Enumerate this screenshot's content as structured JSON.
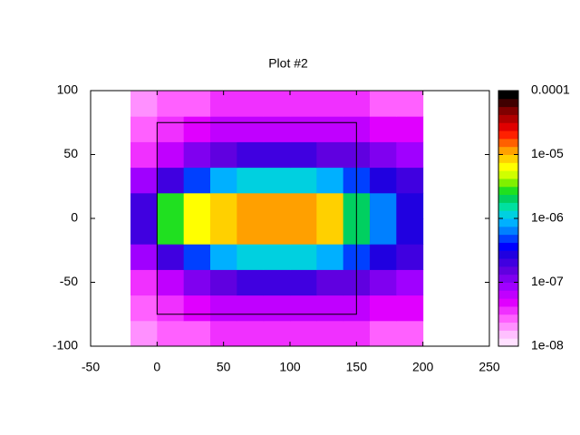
{
  "chart_data": {
    "type": "heatmap",
    "title": "Plot #2",
    "xbins": [
      -20,
      0,
      20,
      40,
      60,
      80,
      100,
      120,
      140,
      160,
      180,
      200
    ],
    "ybins": [
      -100,
      -80,
      -60,
      -40,
      -20,
      0,
      20,
      40,
      60,
      80,
      100
    ],
    "values": [
      [
        2e-08,
        3e-08,
        3e-08,
        4e-08,
        4e-08,
        4e-08,
        4e-08,
        4e-08,
        4e-08,
        3e-08,
        3e-08
      ],
      [
        3e-08,
        4e-08,
        5e-08,
        6e-08,
        7e-08,
        7e-08,
        7e-08,
        6e-08,
        6e-08,
        5e-08,
        5e-08
      ],
      [
        4e-08,
        6e-08,
        1e-07,
        1.5e-07,
        2e-07,
        2e-07,
        2e-07,
        1.5e-07,
        1.5e-07,
        1e-07,
        8e-08
      ],
      [
        8e-08,
        2e-07,
        5e-07,
        8e-07,
        1e-06,
        1e-06,
        1e-06,
        8e-07,
        5e-07,
        3e-07,
        2e-07
      ],
      [
        2e-07,
        3e-06,
        6e-06,
        8e-06,
        1e-05,
        1e-05,
        1e-05,
        8e-06,
        2e-06,
        6e-07,
        3e-07
      ],
      [
        2e-07,
        3e-06,
        6e-06,
        8e-06,
        1e-05,
        1e-05,
        1e-05,
        8e-06,
        2e-06,
        6e-07,
        3e-07
      ],
      [
        8e-08,
        2e-07,
        5e-07,
        8e-07,
        1e-06,
        1e-06,
        1e-06,
        8e-07,
        5e-07,
        3e-07,
        2e-07
      ],
      [
        4e-08,
        6e-08,
        1e-07,
        1.5e-07,
        2e-07,
        2e-07,
        2e-07,
        1.5e-07,
        1.5e-07,
        1e-07,
        8e-08
      ],
      [
        3e-08,
        4e-08,
        5e-08,
        6e-08,
        7e-08,
        7e-08,
        7e-08,
        6e-08,
        6e-08,
        5e-08,
        5e-08
      ],
      [
        2e-08,
        3e-08,
        3e-08,
        4e-08,
        4e-08,
        4e-08,
        4e-08,
        4e-08,
        4e-08,
        3e-08,
        3e-08
      ]
    ],
    "xlim": [
      -50,
      250
    ],
    "xticks": [
      -50,
      0,
      50,
      100,
      150,
      200,
      250
    ],
    "ylim": [
      -100,
      100
    ],
    "yticks": [
      -100,
      -50,
      0,
      50,
      100
    ],
    "zlim": [
      1e-08,
      0.0001
    ],
    "zscale": "log",
    "zticks": [
      {
        "value": 1e-08,
        "label": "1e-08"
      },
      {
        "value": 1e-07,
        "label": "1e-07"
      },
      {
        "value": 1e-06,
        "label": "1e-06"
      },
      {
        "value": 1e-05,
        "label": "1e-05"
      },
      0.0001
    ],
    "box": {
      "x": [
        0,
        150
      ],
      "y": [
        -75,
        75
      ]
    },
    "colormap": [
      "#ffe0ff",
      "#ffc0ff",
      "#ff90ff",
      "#ff60ff",
      "#f030ff",
      "#e000ff",
      "#c000ff",
      "#a000ff",
      "#8000f0",
      "#6000e0",
      "#4000e0",
      "#2000e0",
      "#0000ff",
      "#0040ff",
      "#0080ff",
      "#00b0ff",
      "#00d0e0",
      "#00e0a0",
      "#00d060",
      "#20e020",
      "#80f000",
      "#d0ff00",
      "#ffff00",
      "#ffd000",
      "#ffa000",
      "#ff6000",
      "#ff2000",
      "#e00000",
      "#b00000",
      "#800000",
      "#400000",
      "#000000"
    ]
  }
}
